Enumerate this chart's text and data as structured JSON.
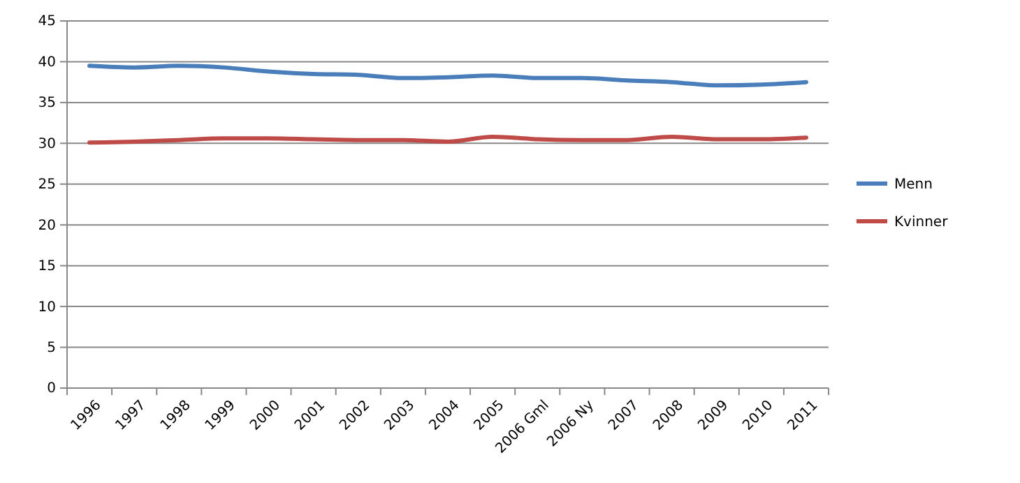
{
  "chart_data": {
    "type": "line",
    "categories": [
      "1996",
      "1997",
      "1998",
      "1999",
      "2000",
      "2001",
      "2002",
      "2003",
      "2004",
      "2005",
      "2006 Gml",
      "2006 Ny",
      "2007",
      "2008",
      "2009",
      "2010",
      "2011"
    ],
    "series": [
      {
        "name": "Menn",
        "color": "#4a7ebb",
        "values": [
          39.5,
          39.3,
          39.5,
          39.3,
          38.8,
          38.5,
          38.4,
          38.0,
          38.1,
          38.3,
          38.0,
          38.0,
          37.7,
          37.5,
          37.1,
          37.2,
          37.5
        ]
      },
      {
        "name": "Kvinner",
        "color": "#be4b48",
        "values": [
          30.1,
          30.2,
          30.4,
          30.6,
          30.6,
          30.5,
          30.4,
          30.4,
          30.2,
          30.8,
          30.5,
          30.4,
          30.4,
          30.8,
          30.5,
          30.5,
          30.7
        ]
      }
    ],
    "ylim": [
      0,
      45
    ],
    "yticks": [
      0,
      5,
      10,
      15,
      20,
      25,
      30,
      35,
      40,
      45
    ],
    "grid": "y",
    "legend": "right",
    "marker": "none",
    "line_style": "solid"
  }
}
